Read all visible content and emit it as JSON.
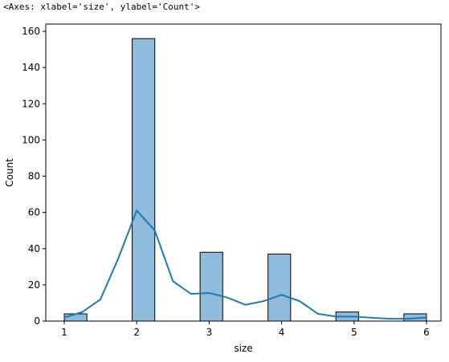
{
  "header": "<Axes: xlabel='size', ylabel='Count'>",
  "chart_data": {
    "type": "histogram",
    "xlabel": "size",
    "ylabel": "Count",
    "bins": [
      1,
      1.3125,
      1.625,
      1.9375,
      2.25,
      2.5625,
      2.875,
      3.1875,
      3.5,
      3.8125,
      4.125,
      4.4375,
      4.75,
      5.0625,
      5.375,
      5.6875,
      6
    ],
    "counts": [
      4,
      0,
      0,
      156,
      0,
      0,
      38,
      0,
      0,
      37,
      0,
      0,
      5,
      0,
      0,
      4
    ],
    "color": "#8fbcdc",
    "edgecolor": "#000000",
    "kde": {
      "color": "#1f77b4",
      "x": [
        1,
        1.25,
        1.5,
        1.75,
        2,
        2.25,
        2.5,
        2.75,
        3,
        3.25,
        3.5,
        3.75,
        4,
        4.25,
        4.5,
        4.75,
        5,
        5.25,
        5.5,
        5.75,
        6
      ],
      "y": [
        2,
        5,
        12,
        35,
        61,
        50,
        22,
        15,
        15.5,
        13,
        9,
        11,
        14.5,
        11,
        4,
        2.5,
        2.5,
        1.8,
        1.3,
        1.3,
        2
      ]
    },
    "xlim": [
      0.745,
      6.2
    ],
    "ylim": [
      0,
      164
    ],
    "xticks": [
      1,
      2,
      3,
      4,
      5,
      6
    ],
    "yticks": [
      0,
      20,
      40,
      60,
      80,
      100,
      120,
      140,
      160
    ]
  }
}
